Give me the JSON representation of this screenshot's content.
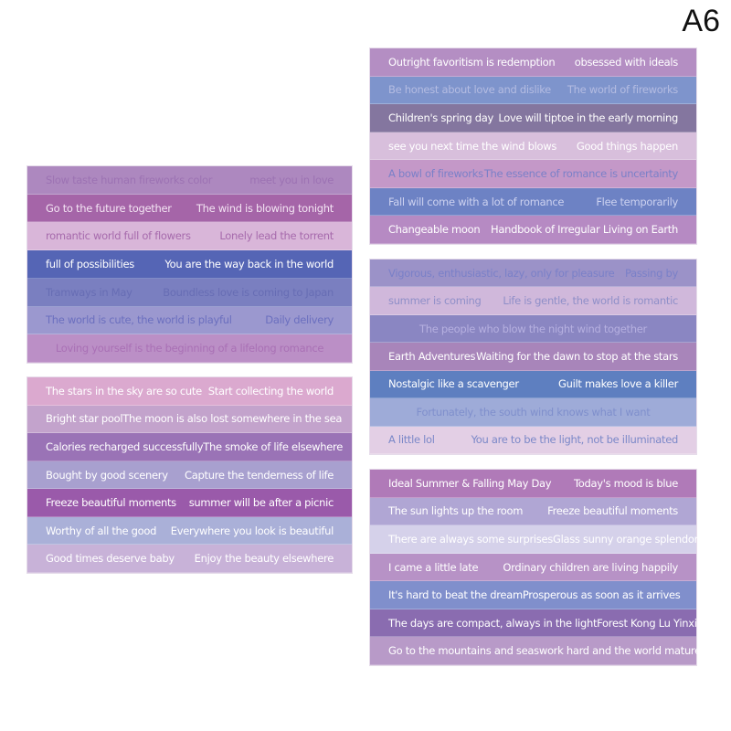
{
  "variant_label": "A6",
  "sheets": [
    {
      "rows": [
        {
          "bg": "#ad88bf",
          "color": "#9c72b3",
          "texts": [
            "Slow taste human fireworks color",
            "meet you in love"
          ]
        },
        {
          "bg": "#a565a8",
          "color": "#f3e4f3",
          "texts": [
            "Go to the future together",
            "The wind is blowing tonight"
          ]
        },
        {
          "bg": "#d9b6d9",
          "color": "#a66aac",
          "texts": [
            "romantic world full of flowers",
            "Lonely lead the torrent"
          ]
        },
        {
          "bg": "#5565b5",
          "color": "#ffffff",
          "texts": [
            "full of possibilities",
            "You are the way back in the world"
          ]
        },
        {
          "bg": "#7a7fc0",
          "color": "#676db4",
          "texts": [
            "Tramways in May",
            "Boundless love is coming to Japan"
          ]
        },
        {
          "bg": "#9b98cf",
          "color": "#6b6fbf",
          "texts": [
            "The world is cute, the world is playful",
            "Daily delivery"
          ]
        },
        {
          "bg": "#bb8fc6",
          "color": "#a970b5",
          "texts": [
            "Loving yourself is the beginning of a lifelong romance"
          ]
        }
      ]
    },
    {
      "rows": [
        {
          "bg": "#dba9cf",
          "color": "#ffffff",
          "texts": [
            "The stars in the sky are so cute",
            "Start collecting the world"
          ]
        },
        {
          "bg": "#c3a3cc",
          "color": "#ffffff",
          "texts": [
            "Bright star pool",
            "The moon is also lost somewhere in the sea"
          ]
        },
        {
          "bg": "#9a73b6",
          "color": "#ffffff",
          "texts": [
            "Calories recharged successfully",
            "The smoke of life elsewhere"
          ]
        },
        {
          "bg": "#a8a0cf",
          "color": "#ffffff",
          "texts": [
            "Bought by good scenery",
            "Capture the tenderness of life"
          ]
        },
        {
          "bg": "#9a5aaa",
          "color": "#ffffff",
          "texts": [
            "Freeze beautiful moments",
            "summer will be after a picnic"
          ]
        },
        {
          "bg": "#aab0d8",
          "color": "#ffffff",
          "texts": [
            "Worthy of all the good",
            "Everywhere you look is beautiful"
          ]
        },
        {
          "bg": "#c8b2d8",
          "color": "#ffffff",
          "texts": [
            "Good times deserve baby",
            "Enjoy the beauty elsewhere"
          ]
        }
      ]
    },
    {
      "rows": [
        {
          "bg": "#b48ec3",
          "color": "#ffffff",
          "texts": [
            "Outright favoritism is redemption",
            "obsessed with ideals"
          ]
        },
        {
          "bg": "#7e94cc",
          "color": "#b4bce2",
          "texts": [
            "Be honest about love and dislike",
            "The world of fireworks"
          ]
        },
        {
          "bg": "#84769f",
          "color": "#ffffff",
          "texts": [
            "Children's spring day",
            "Love will tiptoe in the early morning"
          ]
        },
        {
          "bg": "#d8bfdc",
          "color": "#ffffff",
          "texts": [
            "see you next time the wind blows",
            "Good things happen"
          ]
        },
        {
          "bg": "#c498c8",
          "color": "#7a80c8",
          "texts": [
            "A bowl of fireworks",
            "The essence of romance is uncertainty"
          ]
        },
        {
          "bg": "#6d82c4",
          "color": "#cdd2f0",
          "texts": [
            "Fall will come with a lot of romance",
            "Flee temporarily"
          ]
        },
        {
          "bg": "#b68ac3",
          "color": "#ffffff",
          "texts": [
            "Changeable moon",
            "Handbook of Irregular Living on Earth"
          ]
        }
      ]
    },
    {
      "rows": [
        {
          "bg": "#9b92c8",
          "color": "#7a80c8",
          "texts": [
            "Vigorous, enthusiastic, lazy, only for pleasure",
            "Passing by"
          ]
        },
        {
          "bg": "#d0b8db",
          "color": "#8f8fc8",
          "texts": [
            "summer is coming",
            "Life is gentle, the world is romantic"
          ]
        },
        {
          "bg": "#8a86c2",
          "color": "#b6b0e0",
          "texts": [
            "The people who blow the night wind together"
          ]
        },
        {
          "bg": "#a885ba",
          "color": "#ffffff",
          "texts": [
            "Earth Adventures",
            "Waiting for the dawn to stop at the stars"
          ]
        },
        {
          "bg": "#5e7fc0",
          "color": "#ffffff",
          "texts": [
            "Nostalgic like a scavenger",
            "Guilt makes love a killer"
          ]
        },
        {
          "bg": "#9eabd8",
          "color": "#7f8fcc",
          "texts": [
            "Fortunately, the south wind knows what I want"
          ]
        },
        {
          "bg": "#e3cfe5",
          "color": "#7b88c8",
          "texts": [
            "A little lol",
            "You are to be the light, not be illuminated"
          ]
        }
      ]
    },
    {
      "rows": [
        {
          "bg": "#b07ab8",
          "color": "#ffffff",
          "texts": [
            "Ideal Summer & Falling May Day",
            "Today's mood is blue"
          ]
        },
        {
          "bg": "#b0a6d4",
          "color": "#ffffff",
          "texts": [
            "The sun lights up the room",
            "Freeze beautiful moments"
          ]
        },
        {
          "bg": "#d5d1ea",
          "color": "#ffffff",
          "texts": [
            "There are always some surprises",
            "Glass sunny orange splendor"
          ]
        },
        {
          "bg": "#b792c6",
          "color": "#ffffff",
          "texts": [
            "I came a little late",
            "Ordinary children are living happily"
          ]
        },
        {
          "bg": "#808fcc",
          "color": "#ffffff",
          "texts": [
            "It's hard to beat the dream",
            "Prosperous as soon as it arrives"
          ]
        },
        {
          "bg": "#8a6cb0",
          "color": "#ffffff",
          "texts": [
            "The days are compact, always in the light",
            "Forest Kong Lu Yinxi"
          ]
        },
        {
          "bg": "#b89ac8",
          "color": "#ffffff",
          "texts": [
            "Go to the mountains and seas",
            "work hard and the world matures"
          ]
        }
      ]
    }
  ]
}
